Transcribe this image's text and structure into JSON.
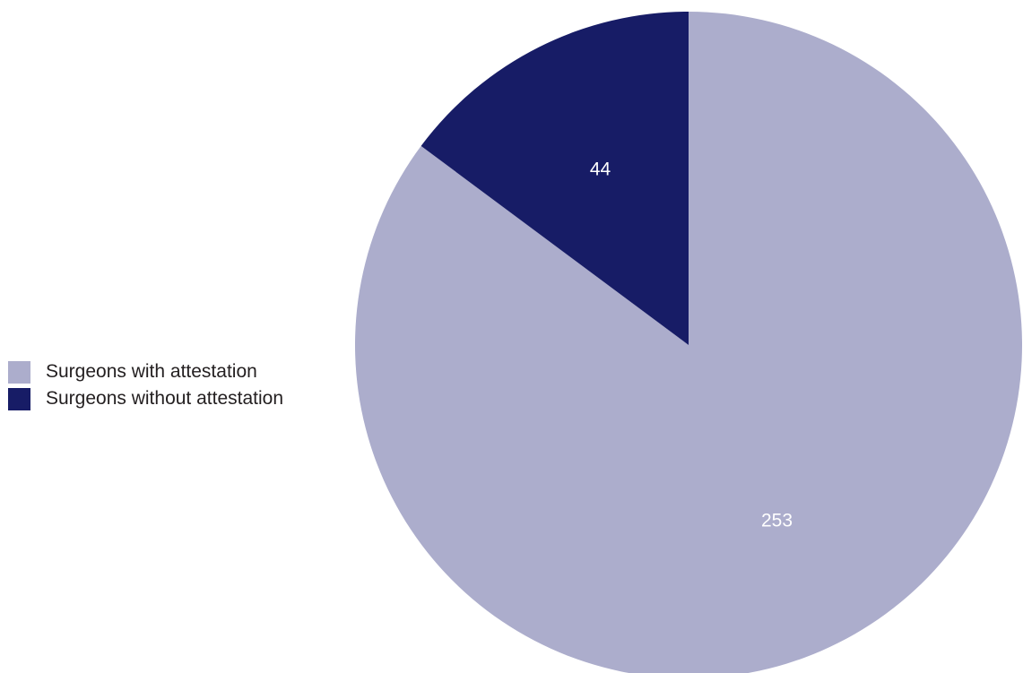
{
  "chart_data": {
    "type": "pie",
    "title": "",
    "categories": [
      "Surgeons with attestation",
      "Surgeons without attestation"
    ],
    "values": [
      253,
      44
    ],
    "colors": [
      "#acadcc",
      "#171c66"
    ],
    "data_labels": [
      "253",
      "44"
    ],
    "legend": {
      "placement": "left",
      "entries": [
        "Surgeons with attestation",
        "Surgeons without attestation"
      ]
    },
    "start_angle_deg": 0,
    "direction": "clockwise"
  }
}
